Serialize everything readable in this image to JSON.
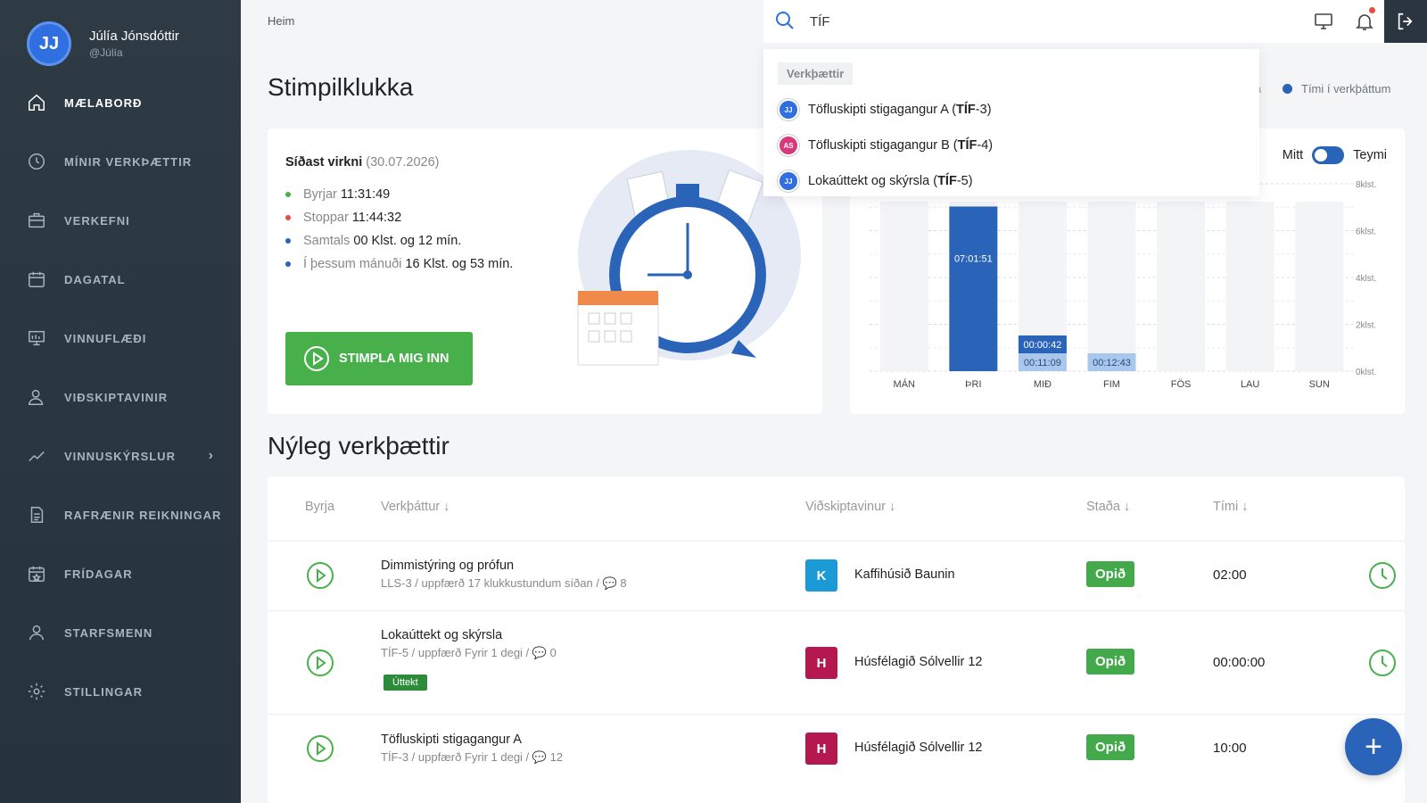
{
  "user": {
    "initials": "JJ",
    "name": "Júlía Jónsdóttir",
    "handle": "@Júlía"
  },
  "nav": [
    {
      "label": "MÆLABORÐ",
      "icon": "home-icon",
      "active": true
    },
    {
      "label": "MÍNIR VERKÞÆTTIR",
      "icon": "clock-icon"
    },
    {
      "label": "VERKEFNI",
      "icon": "briefcase-icon"
    },
    {
      "label": "DAGATAL",
      "icon": "calendar-icon"
    },
    {
      "label": "VINNUFLÆÐI",
      "icon": "workflow-icon"
    },
    {
      "label": "VIÐSKIPTAVINIR",
      "icon": "user-icon"
    },
    {
      "label": "VINNUSKÝRSLUR",
      "icon": "chart-line-icon",
      "chevron": "›"
    },
    {
      "label": "RAFRÆNIR REIKNINGAR",
      "icon": "document-icon"
    },
    {
      "label": "FRÍDAGAR",
      "icon": "calendar-star-icon"
    },
    {
      "label": "STARFSMENN",
      "icon": "users-icon"
    },
    {
      "label": "STILLINGAR",
      "icon": "gear-icon"
    }
  ],
  "breadcrumb": "Heim",
  "search": {
    "value": "TÍF"
  },
  "dropdown": {
    "header": "Verkþættir",
    "items": [
      {
        "avatar": "JJ",
        "avatar_color": "#2f6fe0",
        "name": "Töfluskipti stigagangur A (",
        "code": "TÍF",
        "suffix": "-3)"
      },
      {
        "avatar": "AS",
        "avatar_color": "#d63a7a",
        "name": "Töfluskipti stigagangur B (",
        "code": "TÍF",
        "suffix": "-4)"
      },
      {
        "avatar": "JJ",
        "avatar_color": "#2f6fe0",
        "name": "Lokaúttekt og skýrsla (",
        "code": "TÍF",
        "suffix": "-5)"
      }
    ]
  },
  "page_title": "Stimpilklukka",
  "legend": {
    "partial": "a",
    "time_in_tasks": "Tími í verkþáttum"
  },
  "stamp": {
    "last_label": "Síðast virkni",
    "last_date": "(30.07.2026)",
    "stats": [
      {
        "label": "Byrjar",
        "value": "11:31:49",
        "color": "#47b04b"
      },
      {
        "label": "Stoppar",
        "value": "11:44:32",
        "color": "#e74c3c"
      },
      {
        "label": "Samtals",
        "value": "00 Klst. og 12 mín.",
        "color": "#2a64b9"
      },
      {
        "label": "Í þessum mánuði",
        "value": "16 Klst. og 53 mín.",
        "color": "#2a64b9"
      }
    ],
    "button": "STIMPLA MIG INN"
  },
  "toggle": {
    "left": "Mitt",
    "right": "Teymi"
  },
  "chart_data": {
    "type": "bar",
    "categories": [
      "MÁN",
      "ÞRI",
      "MIÐ",
      "FIM",
      "FÖS",
      "LAU",
      "SUN"
    ],
    "series": [
      {
        "values": [
          0,
          7.03,
          0.18,
          0.21,
          0,
          0,
          0
        ],
        "labels": [
          "",
          "07:01:51",
          "00:11:09",
          "00:12:43",
          "",
          "",
          ""
        ],
        "color": "#2a64b9"
      },
      {
        "values": [
          0,
          0,
          0.01,
          0,
          0,
          0,
          0
        ],
        "labels": [
          "",
          "",
          "00:00:42",
          "",
          "",
          "",
          ""
        ],
        "color": "#2a64b9"
      }
    ],
    "y_ticks": [
      "0klst.",
      "2klst.",
      "4klst.",
      "6klst.",
      "8klst."
    ],
    "ylim": [
      0,
      8
    ],
    "grid": true
  },
  "recent_title": "Nýleg verkþættir",
  "table": {
    "headers": {
      "start": "Byrja",
      "task": "Verkþáttur ↓",
      "customer": "Viðskiptavinur ↓",
      "status": "Staða ↓",
      "time": "Tími ↓"
    },
    "rows": [
      {
        "name": "Dimmistýring og prófun",
        "meta": "LLS-3 / uppfærð 17 klukkustundum síðan / 💬 8",
        "tag": "",
        "cust_initial": "K",
        "cust_color": "#1a9ad6",
        "customer": "Kaffihúsið Baunin",
        "status": "Opið",
        "time": "02:00"
      },
      {
        "name": "Lokaúttekt og skýrsla",
        "meta": "TÍF-5 / uppfærð Fyrir 1 degi / 💬 0",
        "tag": "Úttekt",
        "cust_initial": "H",
        "cust_color": "#b4184e",
        "customer": "Húsfélagið Sólvellir 12",
        "status": "Opið",
        "time": "00:00:00"
      },
      {
        "name": "Töfluskipti stigagangur A",
        "meta": "TÍF-3 / uppfærð Fyrir 1 degi / 💬 12",
        "tag": "",
        "cust_initial": "H",
        "cust_color": "#b4184e",
        "customer": "Húsfélagið Sólvellir 12",
        "status": "Opið",
        "time": "10:00"
      }
    ]
  },
  "fab": "+"
}
